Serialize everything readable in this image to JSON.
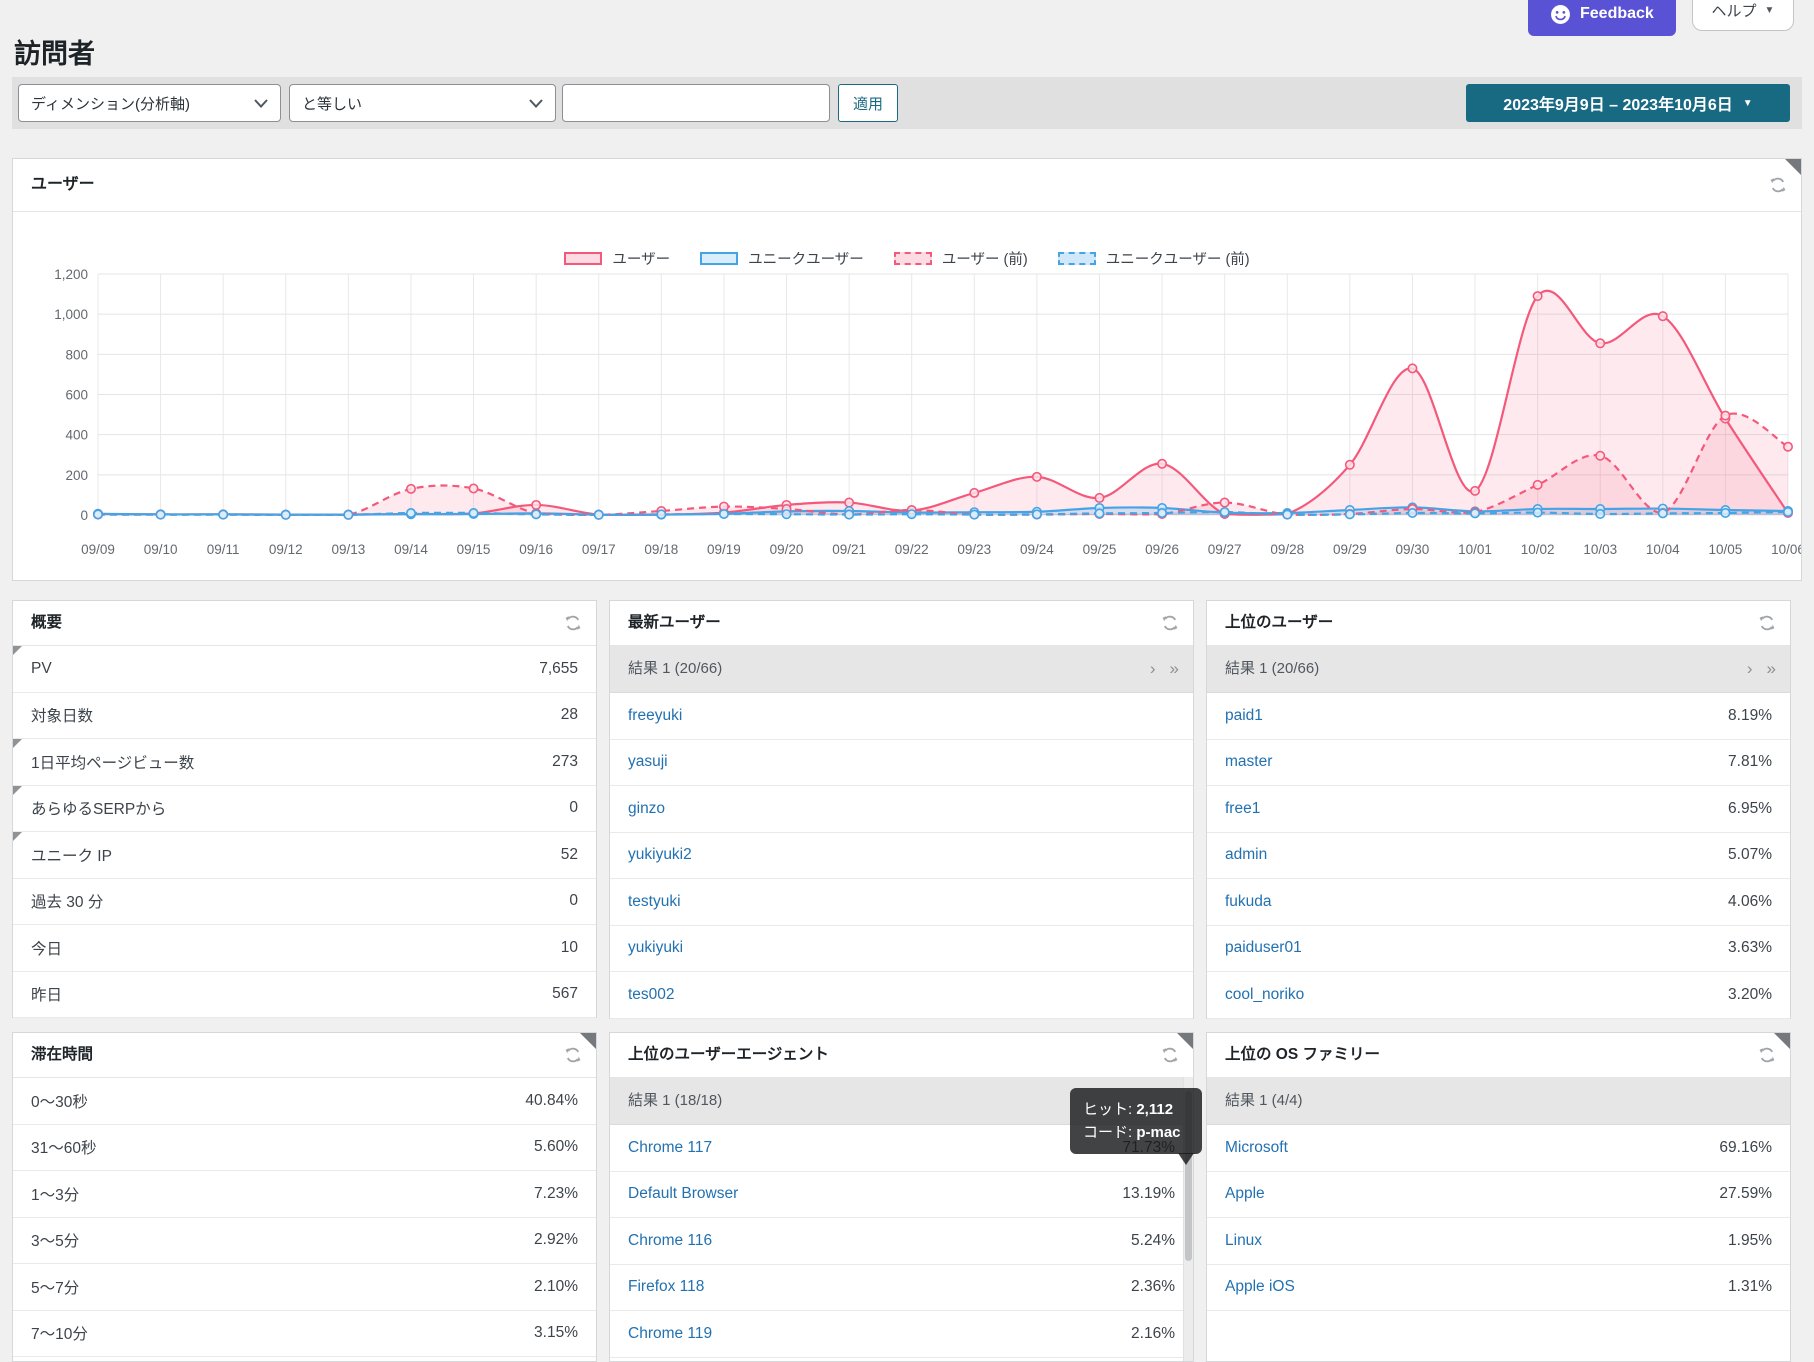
{
  "header": {
    "title": "訪問者",
    "feedback_label": "Feedback",
    "help_label": "ヘルプ"
  },
  "filter_bar": {
    "dimension_select": "ディメンション(分析軸)",
    "operator_select": "と等しい",
    "value_input": "",
    "apply_label": "適用",
    "date_range": "2023年9月9日 – 2023年10月6日"
  },
  "chart_panel": {
    "title": "ユーザー"
  },
  "chart_data": {
    "type": "area",
    "title": "ユーザー",
    "x": [
      "09/09",
      "09/10",
      "09/11",
      "09/12",
      "09/13",
      "09/14",
      "09/15",
      "09/16",
      "09/17",
      "09/18",
      "09/19",
      "09/20",
      "09/21",
      "09/22",
      "09/23",
      "09/24",
      "09/25",
      "09/26",
      "09/27",
      "09/28",
      "09/29",
      "09/30",
      "10/01",
      "10/02",
      "10/03",
      "10/04",
      "10/05",
      "10/06"
    ],
    "ylim": [
      0,
      1200
    ],
    "yticks": [
      0,
      200,
      400,
      600,
      800,
      1000,
      1200
    ],
    "grid": true,
    "legend_position": "top",
    "series": [
      {
        "name": "ユーザー",
        "color": "#f4597b",
        "fill": "rgba(244,89,123,0.13)",
        "marker_fill": "#fce3e9",
        "dash": false,
        "values": [
          5,
          3,
          3,
          2,
          2,
          5,
          8,
          50,
          2,
          2,
          12,
          50,
          62,
          22,
          110,
          190,
          85,
          255,
          5,
          5,
          250,
          730,
          120,
          1090,
          855,
          990,
          480,
          10
        ]
      },
      {
        "name": "ユニークユーザー",
        "color": "#45a4e6",
        "fill": "rgba(69,164,230,0.20)",
        "marker_fill": "#d9edfb",
        "dash": false,
        "values": [
          6,
          3,
          3,
          2,
          2,
          4,
          5,
          8,
          2,
          2,
          6,
          18,
          20,
          12,
          14,
          16,
          35,
          35,
          12,
          10,
          25,
          38,
          18,
          30,
          30,
          32,
          25,
          20
        ]
      },
      {
        "name": "ユーザー (前)",
        "color": "#f4597b",
        "fill": "rgba(244,89,123,0.13)",
        "marker_fill": "#fce3e9",
        "dash": true,
        "values": [
          2,
          2,
          2,
          1,
          1,
          130,
          132,
          8,
          1,
          20,
          42,
          30,
          3,
          25,
          2,
          2,
          5,
          5,
          62,
          2,
          5,
          30,
          15,
          150,
          295,
          10,
          495,
          340
        ]
      },
      {
        "name": "ユニークユーザー (前)",
        "color": "#45a4e6",
        "fill": "rgba(69,164,230,0.16)",
        "marker_fill": "#d9edfb",
        "dash": true,
        "values": [
          3,
          2,
          2,
          1,
          1,
          10,
          10,
          3,
          1,
          3,
          5,
          4,
          2,
          4,
          2,
          3,
          8,
          10,
          15,
          2,
          3,
          10,
          8,
          12,
          5,
          8,
          10,
          15
        ]
      }
    ]
  },
  "panels": {
    "overview": {
      "title": "概要",
      "rows": [
        {
          "label": "PV",
          "value": "7,655",
          "marker": true
        },
        {
          "label": "対象日数",
          "value": "28",
          "marker": false
        },
        {
          "label": "1日平均ページビュー数",
          "value": "273",
          "marker": true
        },
        {
          "label": "あらゆるSERPから",
          "value": "0",
          "marker": true
        },
        {
          "label": "ユニーク IP",
          "value": "52",
          "marker": true
        },
        {
          "label": "過去 30 分",
          "value": "0",
          "marker": false
        },
        {
          "label": "今日",
          "value": "10",
          "marker": false
        },
        {
          "label": "昨日",
          "value": "567",
          "marker": false
        }
      ]
    },
    "latest_users": {
      "title": "最新ユーザー",
      "pagination": "結果 1 (20/66)",
      "rows": [
        {
          "label": "freeyuki"
        },
        {
          "label": "yasuji"
        },
        {
          "label": "ginzo"
        },
        {
          "label": "yukiyuki2"
        },
        {
          "label": "testyuki"
        },
        {
          "label": "yukiyuki"
        },
        {
          "label": "tes002"
        }
      ]
    },
    "top_users": {
      "title": "上位のユーザー",
      "pagination": "結果 1 (20/66)",
      "rows": [
        {
          "label": "paid1",
          "value": "8.19%"
        },
        {
          "label": "master",
          "value": "7.81%"
        },
        {
          "label": "free1",
          "value": "6.95%"
        },
        {
          "label": "admin",
          "value": "5.07%"
        },
        {
          "label": "fukuda",
          "value": "4.06%"
        },
        {
          "label": "paiduser01",
          "value": "3.63%"
        },
        {
          "label": "cool_noriko",
          "value": "3.20%"
        }
      ]
    },
    "duration": {
      "title": "滞在時間",
      "rows": [
        {
          "label": "0〜30秒",
          "value": "40.84%"
        },
        {
          "label": "31〜60秒",
          "value": "5.60%"
        },
        {
          "label": "1〜3分",
          "value": "7.23%"
        },
        {
          "label": "3〜5分",
          "value": "2.92%"
        },
        {
          "label": "5〜7分",
          "value": "2.10%"
        },
        {
          "label": "7〜10分",
          "value": "3.15%"
        }
      ]
    },
    "user_agents": {
      "title": "上位のユーザーエージェント",
      "pagination": "結果 1 (18/18)",
      "rows": [
        {
          "label": "Chrome 117",
          "value": "71.73%"
        },
        {
          "label": "Default Browser",
          "value": "13.19%"
        },
        {
          "label": "Chrome 116",
          "value": "5.24%"
        },
        {
          "label": "Firefox 118",
          "value": "2.36%"
        },
        {
          "label": "Chrome 119",
          "value": "2.16%"
        }
      ]
    },
    "os_families": {
      "title": "上位の OS ファミリー",
      "pagination": "結果 1 (4/4)",
      "rows": [
        {
          "label": "Microsoft",
          "value": "69.16%"
        },
        {
          "label": "Apple",
          "value": "27.59%"
        },
        {
          "label": "Linux",
          "value": "1.95%"
        },
        {
          "label": "Apple iOS",
          "value": "1.31%"
        }
      ]
    }
  },
  "tooltip": {
    "hits_label": "ヒット:",
    "hits_value": "2,112",
    "code_label": "コード:",
    "code_value": "p-mac"
  },
  "colors": {
    "accent_teal": "#186a83",
    "feedback_purple": "#5a52d5",
    "link_blue": "#2271b1",
    "series_pink": "#f4597b",
    "series_blue": "#45a4e6",
    "page_bg": "#f0f0f1"
  }
}
